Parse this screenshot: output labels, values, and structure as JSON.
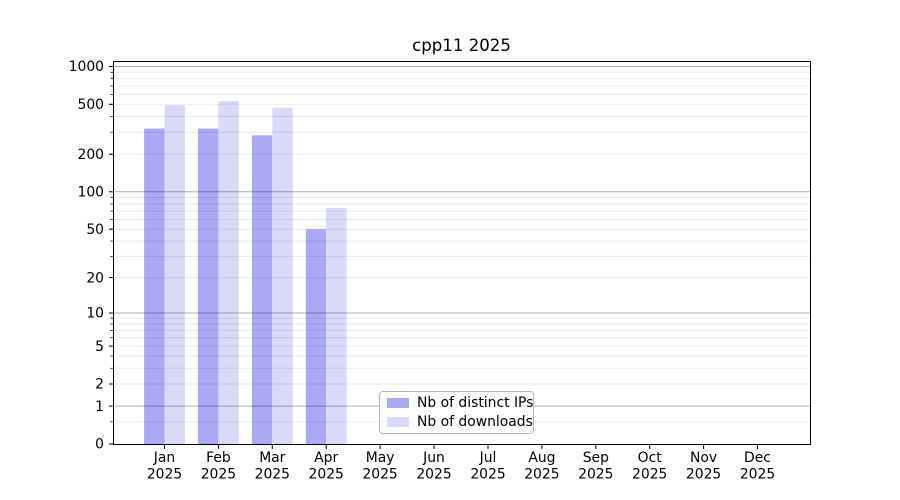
{
  "window": {
    "background": "#ffffff"
  },
  "chart_data": {
    "type": "bar",
    "title": "cpp11 2025",
    "categories": [
      "Jan",
      "Feb",
      "Mar",
      "Apr",
      "May",
      "Jun",
      "Jul",
      "Aug",
      "Sep",
      "Oct",
      "Nov",
      "Dec"
    ],
    "category_year": "2025",
    "series": [
      {
        "name": "Nb of distinct IPs",
        "color": "#a9a9f5",
        "values": [
          320,
          320,
          283,
          50,
          0,
          0,
          0,
          0,
          0,
          0,
          0,
          0
        ]
      },
      {
        "name": "Nb of downloads",
        "color": "#d9d9f8",
        "values": [
          492,
          530,
          468,
          74,
          0,
          0,
          0,
          0,
          0,
          0,
          0,
          0
        ]
      }
    ],
    "xlabel": "",
    "ylabel": "",
    "yscale": "log1p",
    "ylim": [
      0,
      1120
    ],
    "yticks": [
      0,
      1,
      2,
      5,
      10,
      20,
      50,
      100,
      200,
      500,
      1000
    ],
    "grid": {
      "orientation": "horizontal",
      "major_values": [
        1,
        10,
        100,
        1000
      ],
      "major_color": "#b0b0b0",
      "minor_color": "#ebebeb"
    },
    "legend_position": "lower center",
    "axis_color": "#000000",
    "tick_label_color": "#000000"
  }
}
